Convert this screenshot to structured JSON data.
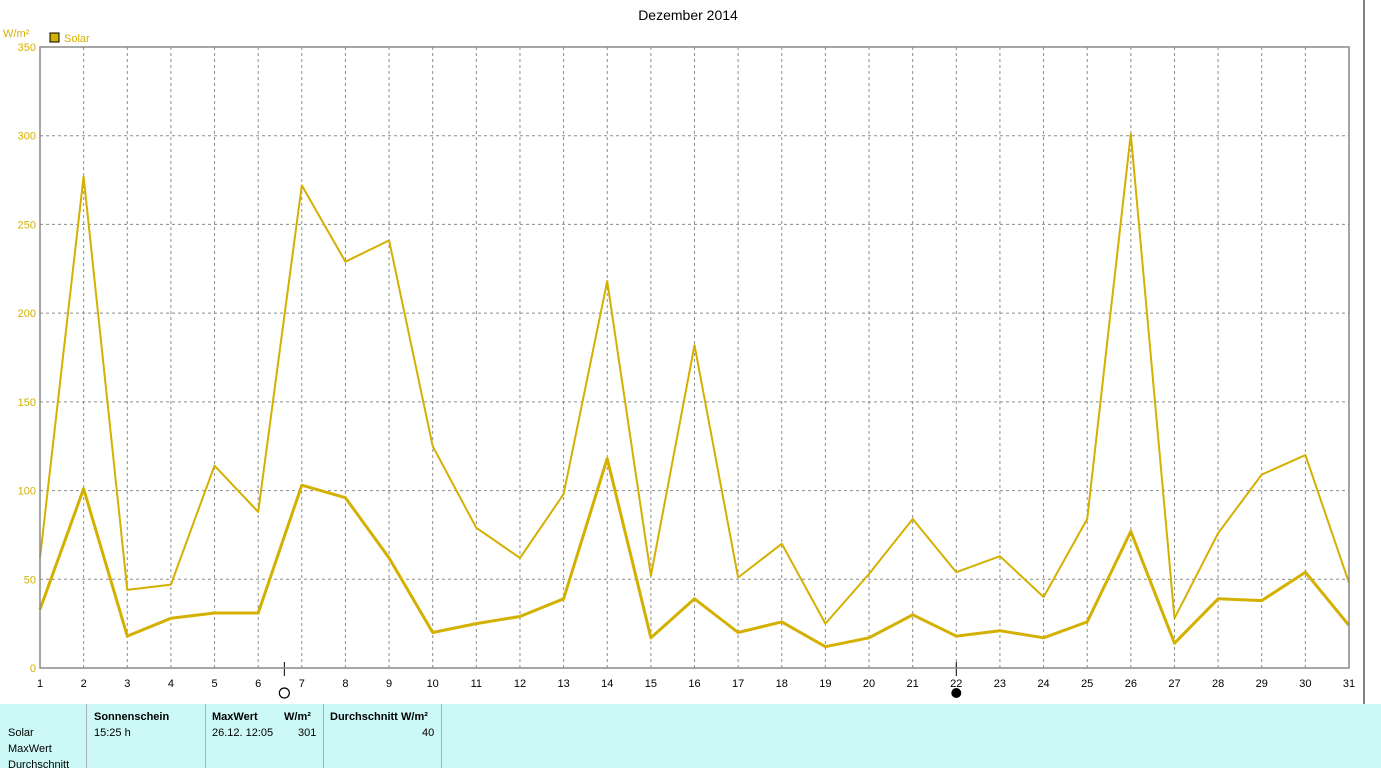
{
  "chart_data": {
    "type": "line",
    "title": "Dezember 2014",
    "ylabel": "W/m²",
    "legend": "Solar",
    "legend_position": "top-left",
    "grid": true,
    "ylim": [
      0,
      350
    ],
    "yticks": [
      0,
      50,
      100,
      150,
      200,
      250,
      300,
      350
    ],
    "categories": [
      "1",
      "2",
      "3",
      "4",
      "5",
      "6",
      "7",
      "8",
      "9",
      "10",
      "11",
      "12",
      "13",
      "14",
      "15",
      "16",
      "17",
      "18",
      "19",
      "20",
      "21",
      "22",
      "23",
      "24",
      "25",
      "26",
      "27",
      "28",
      "29",
      "30",
      "31"
    ],
    "series": [
      {
        "name": "MaxWert",
        "color": "#d4b000",
        "values": [
          62,
          277,
          44,
          47,
          114,
          88,
          272,
          229,
          241,
          125,
          79,
          62,
          98,
          218,
          52,
          182,
          51,
          70,
          25,
          53,
          84,
          54,
          63,
          40,
          84,
          301,
          28,
          76,
          109,
          120,
          48
        ]
      },
      {
        "name": "Durchschnitt",
        "color": "#d4b000",
        "values": [
          33,
          101,
          18,
          28,
          31,
          31,
          103,
          96,
          62,
          20,
          25,
          29,
          39,
          118,
          17,
          39,
          20,
          26,
          12,
          17,
          30,
          18,
          21,
          17,
          26,
          77,
          14,
          39,
          38,
          54,
          24
        ]
      }
    ],
    "moon_phases": [
      {
        "x": 6.6,
        "phase": "full-moon-icon"
      },
      {
        "x": 22.0,
        "phase": "new-moon-icon"
      }
    ]
  },
  "stats": {
    "row_labels": [
      "Solar",
      "MaxWert",
      "Durchschnitt"
    ],
    "sonnenschein": {
      "header": "Sonnenschein",
      "value": "15:25 h"
    },
    "maxwert": {
      "header": "MaxWert",
      "unit": "W/m²",
      "date": "26.12.  12:05",
      "value": "301"
    },
    "durchschnitt": {
      "header": "Durchschnitt",
      "unit": "W/m²",
      "value": "40"
    }
  }
}
